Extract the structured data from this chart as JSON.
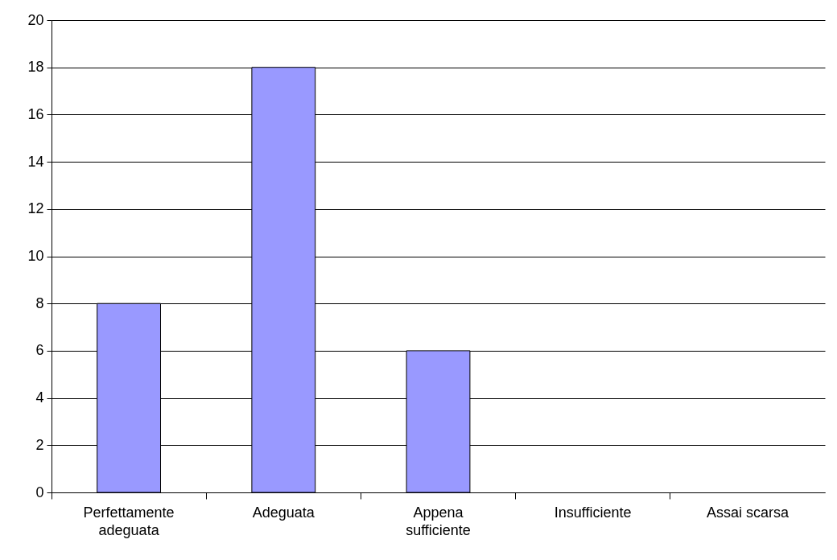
{
  "chart_data": {
    "type": "bar",
    "categories": [
      "Perfettamente adeguata",
      "Adeguata",
      "Appena sufficiente",
      "Insufficiente",
      "Assai scarsa"
    ],
    "values": [
      8,
      18,
      6,
      0,
      0
    ],
    "color": "#9999ff",
    "ylim": [
      0,
      20
    ],
    "yticks": [
      0,
      2,
      4,
      6,
      8,
      10,
      12,
      14,
      16,
      18,
      20
    ],
    "grid": "y"
  }
}
